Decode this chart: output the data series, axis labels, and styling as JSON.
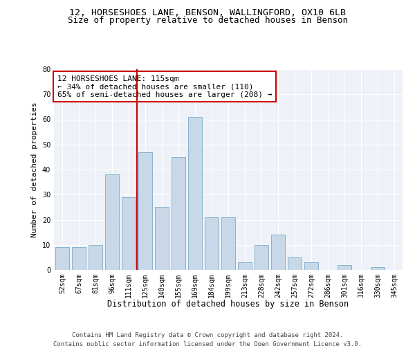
{
  "title1": "12, HORSESHOES LANE, BENSON, WALLINGFORD, OX10 6LB",
  "title2": "Size of property relative to detached houses in Benson",
  "xlabel": "Distribution of detached houses by size in Benson",
  "ylabel": "Number of detached properties",
  "categories": [
    "52sqm",
    "67sqm",
    "81sqm",
    "96sqm",
    "111sqm",
    "125sqm",
    "140sqm",
    "155sqm",
    "169sqm",
    "184sqm",
    "199sqm",
    "213sqm",
    "228sqm",
    "242sqm",
    "257sqm",
    "272sqm",
    "286sqm",
    "301sqm",
    "316sqm",
    "330sqm",
    "345sqm"
  ],
  "values": [
    9,
    9,
    10,
    38,
    29,
    47,
    25,
    45,
    61,
    21,
    21,
    3,
    10,
    14,
    5,
    3,
    0,
    2,
    0,
    1,
    0
  ],
  "bar_color": "#c8d8e8",
  "bar_edge_color": "#7aaac8",
  "vline_x": 4.5,
  "vline_color": "#cc0000",
  "annotation_text": "12 HORSESHOES LANE: 115sqm\n← 34% of detached houses are smaller (110)\n65% of semi-detached houses are larger (208) →",
  "annotation_box_color": "#cc0000",
  "ylim": [
    0,
    80
  ],
  "yticks": [
    0,
    10,
    20,
    30,
    40,
    50,
    60,
    70,
    80
  ],
  "footer1": "Contains HM Land Registry data © Crown copyright and database right 2024.",
  "footer2": "Contains public sector information licensed under the Open Government Licence v3.0.",
  "plot_bg_color": "#eef2f8",
  "title1_fontsize": 9.5,
  "title2_fontsize": 9,
  "tick_fontsize": 7,
  "xlabel_fontsize": 8.5,
  "ylabel_fontsize": 8,
  "annotation_fontsize": 8,
  "footer_fontsize": 6.5
}
